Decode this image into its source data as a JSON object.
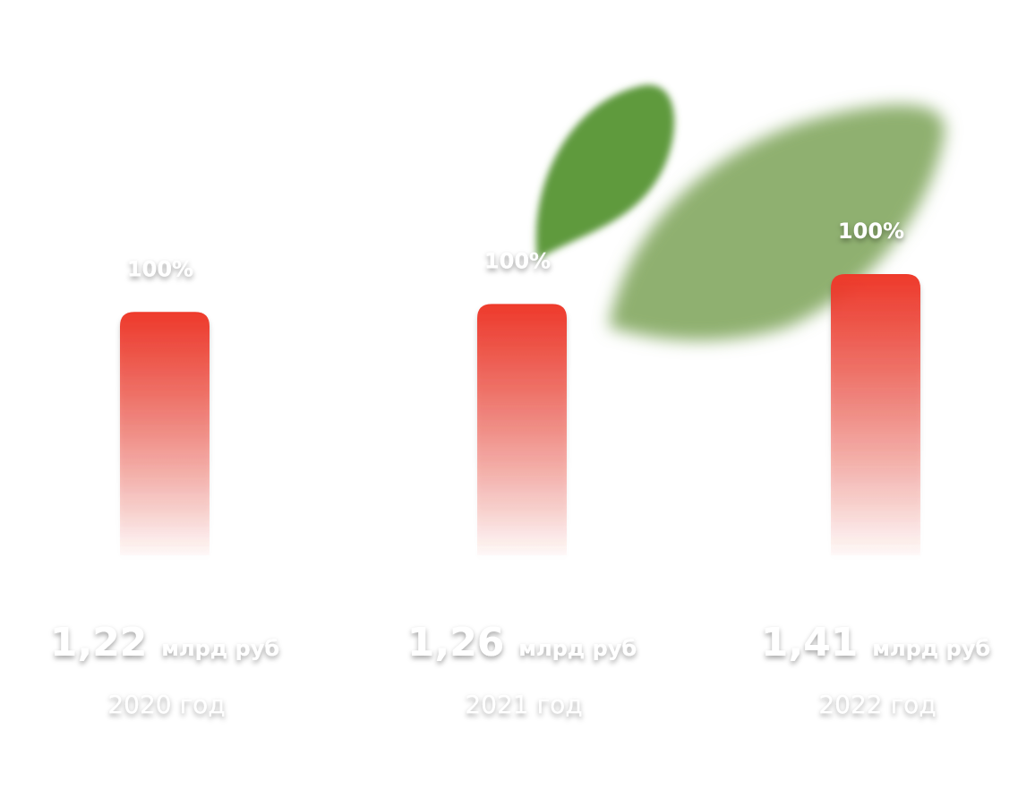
{
  "chart_data": {
    "type": "bar",
    "categories": [
      "2020 год",
      "2021 год",
      "2022 год"
    ],
    "values": [
      1.22,
      1.26,
      1.41
    ],
    "value_labels": [
      "1,22",
      "1,26",
      "1,41"
    ],
    "unit": "млрд руб",
    "top_labels": [
      "100%",
      "100%",
      "100%"
    ],
    "color": "#ee3a2c"
  }
}
